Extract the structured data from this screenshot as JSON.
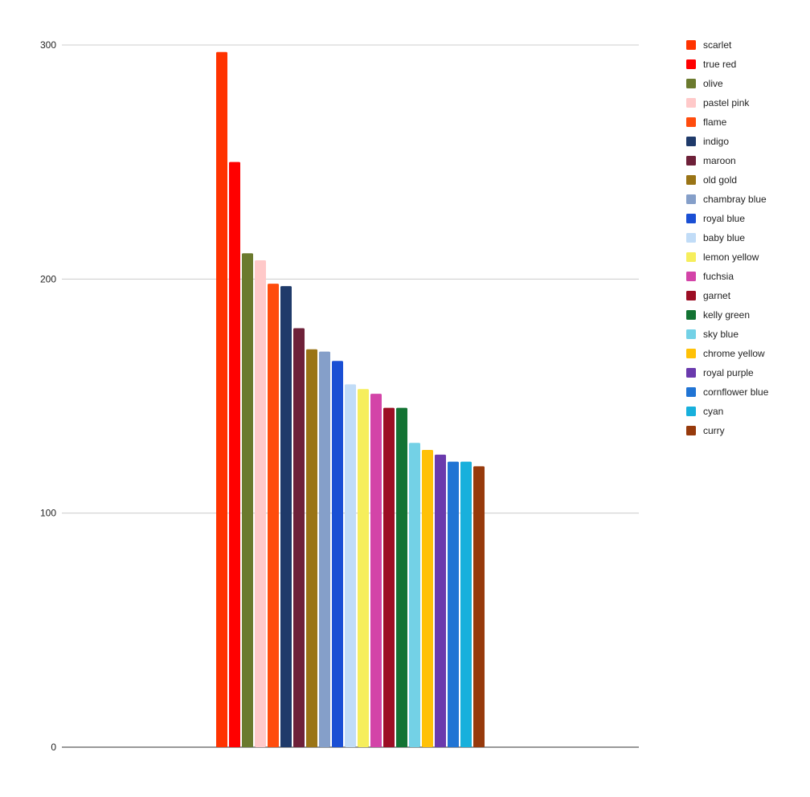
{
  "chart_data": {
    "type": "bar",
    "title": "",
    "xlabel": "",
    "ylabel": "",
    "ylim": [
      0,
      300
    ],
    "yticks": [
      0,
      100,
      200,
      300
    ],
    "grid": true,
    "legend_position": "right",
    "series": [
      {
        "name": "scarlet",
        "value": 297,
        "color": "#ff3300"
      },
      {
        "name": "true red",
        "value": 250,
        "color": "#ff0000"
      },
      {
        "name": "olive",
        "value": 211,
        "color": "#6b7a2e"
      },
      {
        "name": "pastel pink",
        "value": 208,
        "color": "#ffc9c9"
      },
      {
        "name": "flame",
        "value": 198,
        "color": "#ff4c0d"
      },
      {
        "name": "indigo",
        "value": 197,
        "color": "#1f3a6a"
      },
      {
        "name": "maroon",
        "value": 179,
        "color": "#6e2139"
      },
      {
        "name": "old gold",
        "value": 170,
        "color": "#9a7416"
      },
      {
        "name": "chambray blue",
        "value": 169,
        "color": "#859fc9"
      },
      {
        "name": "royal blue",
        "value": 165,
        "color": "#1a4fd4"
      },
      {
        "name": "baby blue",
        "value": 155,
        "color": "#c1dcf7"
      },
      {
        "name": "lemon yellow",
        "value": 153,
        "color": "#f6ee5c"
      },
      {
        "name": "fuchsia",
        "value": 151,
        "color": "#d344a8"
      },
      {
        "name": "garnet",
        "value": 145,
        "color": "#9c0e24"
      },
      {
        "name": "kelly green",
        "value": 145,
        "color": "#137333"
      },
      {
        "name": "sky blue",
        "value": 130,
        "color": "#73d1e6"
      },
      {
        "name": "chrome yellow",
        "value": 127,
        "color": "#ffc107"
      },
      {
        "name": "royal purple",
        "value": 125,
        "color": "#6a3aad"
      },
      {
        "name": "cornflower blue",
        "value": 122,
        "color": "#2074d4"
      },
      {
        "name": "cyan",
        "value": 122,
        "color": "#18b0dc"
      },
      {
        "name": "curry",
        "value": 120,
        "color": "#973a0c"
      }
    ]
  }
}
